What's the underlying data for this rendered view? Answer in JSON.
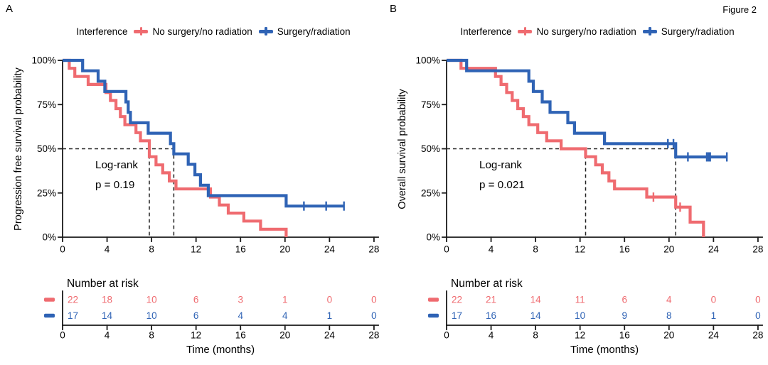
{
  "figure_label": "Figure 2",
  "colors": {
    "no_surgery": "#EF6B70",
    "surgery": "#2F63B5",
    "axis": "#1a1a1a",
    "dashed": "#222222",
    "text": "#000000"
  },
  "legend": {
    "title": "Interference",
    "items": [
      {
        "id": "no_surgery",
        "label": "No surgery/no radiation"
      },
      {
        "id": "surgery",
        "label": "Surgery/radiation"
      }
    ]
  },
  "x_axis": {
    "label": "Time (months)",
    "ticks": [
      0,
      4,
      8,
      12,
      16,
      20,
      24,
      28
    ]
  },
  "y_axis": {
    "tick_labels": [
      "100%",
      "75%",
      "50%",
      "25%",
      "0%"
    ],
    "tick_values": [
      1,
      0.75,
      0.5,
      0.25,
      0
    ]
  },
  "risk_table_header": "Number at risk",
  "panels": [
    {
      "label": "A",
      "y_axis_title": "Progression free survival probability",
      "annotation": {
        "line1": "Log-rank",
        "line2": "p = 0.19"
      },
      "chart_data": {
        "type": "line",
        "subtype": "kaplan_meier_step",
        "xlabel": "Time (months)",
        "ylabel": "Progression free survival probability",
        "xlim": [
          0,
          29
        ],
        "ylim": [
          0,
          1
        ],
        "median_survival_months": {
          "no_surgery": 7.8,
          "surgery": 10.0
        },
        "series": [
          {
            "name": "No surgery/no radiation",
            "color_id": "no_surgery",
            "steps": [
              [
                0,
                1
              ],
              [
                0.6,
                0.955
              ],
              [
                1.1,
                0.909
              ],
              [
                2.3,
                0.864
              ],
              [
                3.9,
                0.818
              ],
              [
                4.3,
                0.773
              ],
              [
                4.8,
                0.727
              ],
              [
                5.2,
                0.682
              ],
              [
                5.6,
                0.636
              ],
              [
                6.6,
                0.591
              ],
              [
                7.0,
                0.545
              ],
              [
                7.8,
                0.455
              ],
              [
                8.4,
                0.409
              ],
              [
                9.0,
                0.364
              ],
              [
                9.6,
                0.318
              ],
              [
                10.2,
                0.273
              ],
              [
                13.3,
                0.227
              ],
              [
                14.1,
                0.182
              ],
              [
                14.9,
                0.136
              ],
              [
                16.3,
                0.091
              ],
              [
                17.8,
                0.045
              ],
              [
                20.1,
                0
              ]
            ],
            "censor_times": []
          },
          {
            "name": "Surgery/radiation",
            "color_id": "surgery",
            "steps": [
              [
                0,
                1
              ],
              [
                1.8,
                0.941
              ],
              [
                3.2,
                0.882
              ],
              [
                3.8,
                0.824
              ],
              [
                5.7,
                0.765
              ],
              [
                5.9,
                0.706
              ],
              [
                6.1,
                0.647
              ],
              [
                7.7,
                0.588
              ],
              [
                9.7,
                0.529
              ],
              [
                10.0,
                0.471
              ],
              [
                11.3,
                0.412
              ],
              [
                11.9,
                0.353
              ],
              [
                12.4,
                0.294
              ],
              [
                13.1,
                0.235
              ],
              [
                20.1,
                0.176
              ]
            ],
            "censor_times": [
              21.7,
              23.7,
              25.3
            ]
          }
        ]
      },
      "risk_table": {
        "times": [
          0,
          4,
          8,
          12,
          16,
          20,
          24,
          28
        ],
        "rows": [
          {
            "name": "No surgery/no radiation",
            "color_id": "no_surgery",
            "values": [
              22,
              18,
              10,
              6,
              3,
              1,
              0,
              0
            ]
          },
          {
            "name": "Surgery/radiation",
            "color_id": "surgery",
            "values": [
              17,
              14,
              10,
              6,
              4,
              4,
              1,
              0
            ]
          }
        ]
      }
    },
    {
      "label": "B",
      "y_axis_title": "Overall survival probability",
      "annotation": {
        "line1": "Log-rank",
        "line2": "p = 0.021"
      },
      "chart_data": {
        "type": "line",
        "subtype": "kaplan_meier_step",
        "xlabel": "Time (months)",
        "ylabel": "Overall survival probability",
        "xlim": [
          0,
          29
        ],
        "ylim": [
          0,
          1
        ],
        "median_survival_months": {
          "no_surgery": 12.5,
          "surgery": 20.6
        },
        "series": [
          {
            "name": "No surgery/no radiation",
            "color_id": "no_surgery",
            "steps": [
              [
                0,
                1
              ],
              [
                1.3,
                0.955
              ],
              [
                4.4,
                0.909
              ],
              [
                4.9,
                0.864
              ],
              [
                5.4,
                0.818
              ],
              [
                5.9,
                0.773
              ],
              [
                6.4,
                0.727
              ],
              [
                6.9,
                0.682
              ],
              [
                7.4,
                0.636
              ],
              [
                8.2,
                0.591
              ],
              [
                9.0,
                0.545
              ],
              [
                10.3,
                0.5
              ],
              [
                12.5,
                0.455
              ],
              [
                13.4,
                0.409
              ],
              [
                14.0,
                0.364
              ],
              [
                14.6,
                0.318
              ],
              [
                15.1,
                0.273
              ],
              [
                18.0,
                0.227
              ],
              [
                20.6,
                0.17
              ],
              [
                21.9,
                0.085
              ],
              [
                23.1,
                0
              ]
            ],
            "censor_times": [
              18.6,
              21.0
            ]
          },
          {
            "name": "Surgery/radiation",
            "color_id": "surgery",
            "steps": [
              [
                0,
                1
              ],
              [
                1.8,
                0.941
              ],
              [
                7.4,
                0.882
              ],
              [
                7.8,
                0.824
              ],
              [
                8.6,
                0.765
              ],
              [
                9.3,
                0.706
              ],
              [
                10.9,
                0.647
              ],
              [
                11.5,
                0.588
              ],
              [
                14.2,
                0.529
              ],
              [
                20.6,
                0.454
              ]
            ],
            "censor_times": [
              19.9,
              20.4,
              21.7,
              23.4,
              23.55,
              23.7,
              25.2
            ]
          }
        ]
      },
      "risk_table": {
        "times": [
          0,
          4,
          8,
          12,
          16,
          20,
          24,
          28
        ],
        "rows": [
          {
            "name": "No surgery/no radiation",
            "color_id": "no_surgery",
            "values": [
              22,
              21,
              14,
              11,
              6,
              4,
              0,
              0
            ]
          },
          {
            "name": "Surgery/radiation",
            "color_id": "surgery",
            "values": [
              17,
              16,
              14,
              10,
              9,
              8,
              1,
              0
            ]
          }
        ]
      }
    }
  ]
}
